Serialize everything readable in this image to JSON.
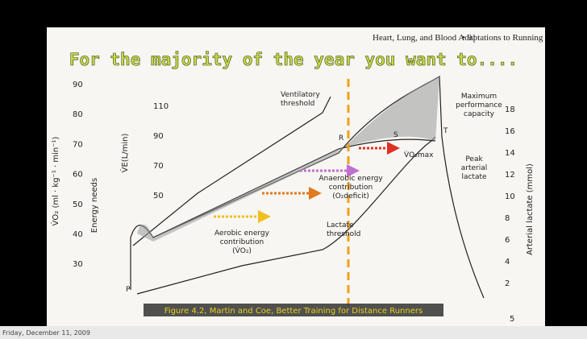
{
  "slide_title": "For the majority of the year you want to....",
  "page_header": {
    "running_head": "Heart, Lung, and Blood Adaptations to Running",
    "page_number": "• 91"
  },
  "figure": {
    "left_axis": {
      "label": "V̇O₂ (ml · kg⁻¹ · min⁻¹)",
      "sublabel": "Energy needs",
      "ticks": [
        "90",
        "80",
        "70",
        "60",
        "50",
        "40",
        "30"
      ]
    },
    "inner_axis": {
      "label": "V̇E(L/min)",
      "ticks": [
        "110",
        "90",
        "70",
        "50"
      ]
    },
    "right_axis": {
      "label": "Arterial lactate (mmol)",
      "ticks": [
        "18",
        "16",
        "14",
        "12",
        "10",
        "8",
        "6",
        "4",
        "2"
      ],
      "extra_tick": "5"
    },
    "annotations": {
      "ventilatory_threshold": [
        "Ventilatory",
        "threshold"
      ],
      "max_performance": [
        "Maximum",
        "performance",
        "capacity"
      ],
      "peak_lactate": [
        "Peak",
        "arterial",
        "lactate"
      ],
      "anaerobic": [
        "Anaerobic energy",
        "contribution",
        "(O₂deficit)"
      ],
      "aerobic": [
        "Aerobic energy",
        "contribution",
        "(V̇O₂)"
      ],
      "lactate_threshold": [
        "Lactate",
        "threshold"
      ],
      "vo2max": "V̇O₂max",
      "points": [
        "R",
        "S",
        "T",
        "P"
      ]
    }
  },
  "caption": "Figure 4.2, Martin and Coe, Better Training for Distance Runners",
  "footer_date": "Friday, December 11, 2009"
}
